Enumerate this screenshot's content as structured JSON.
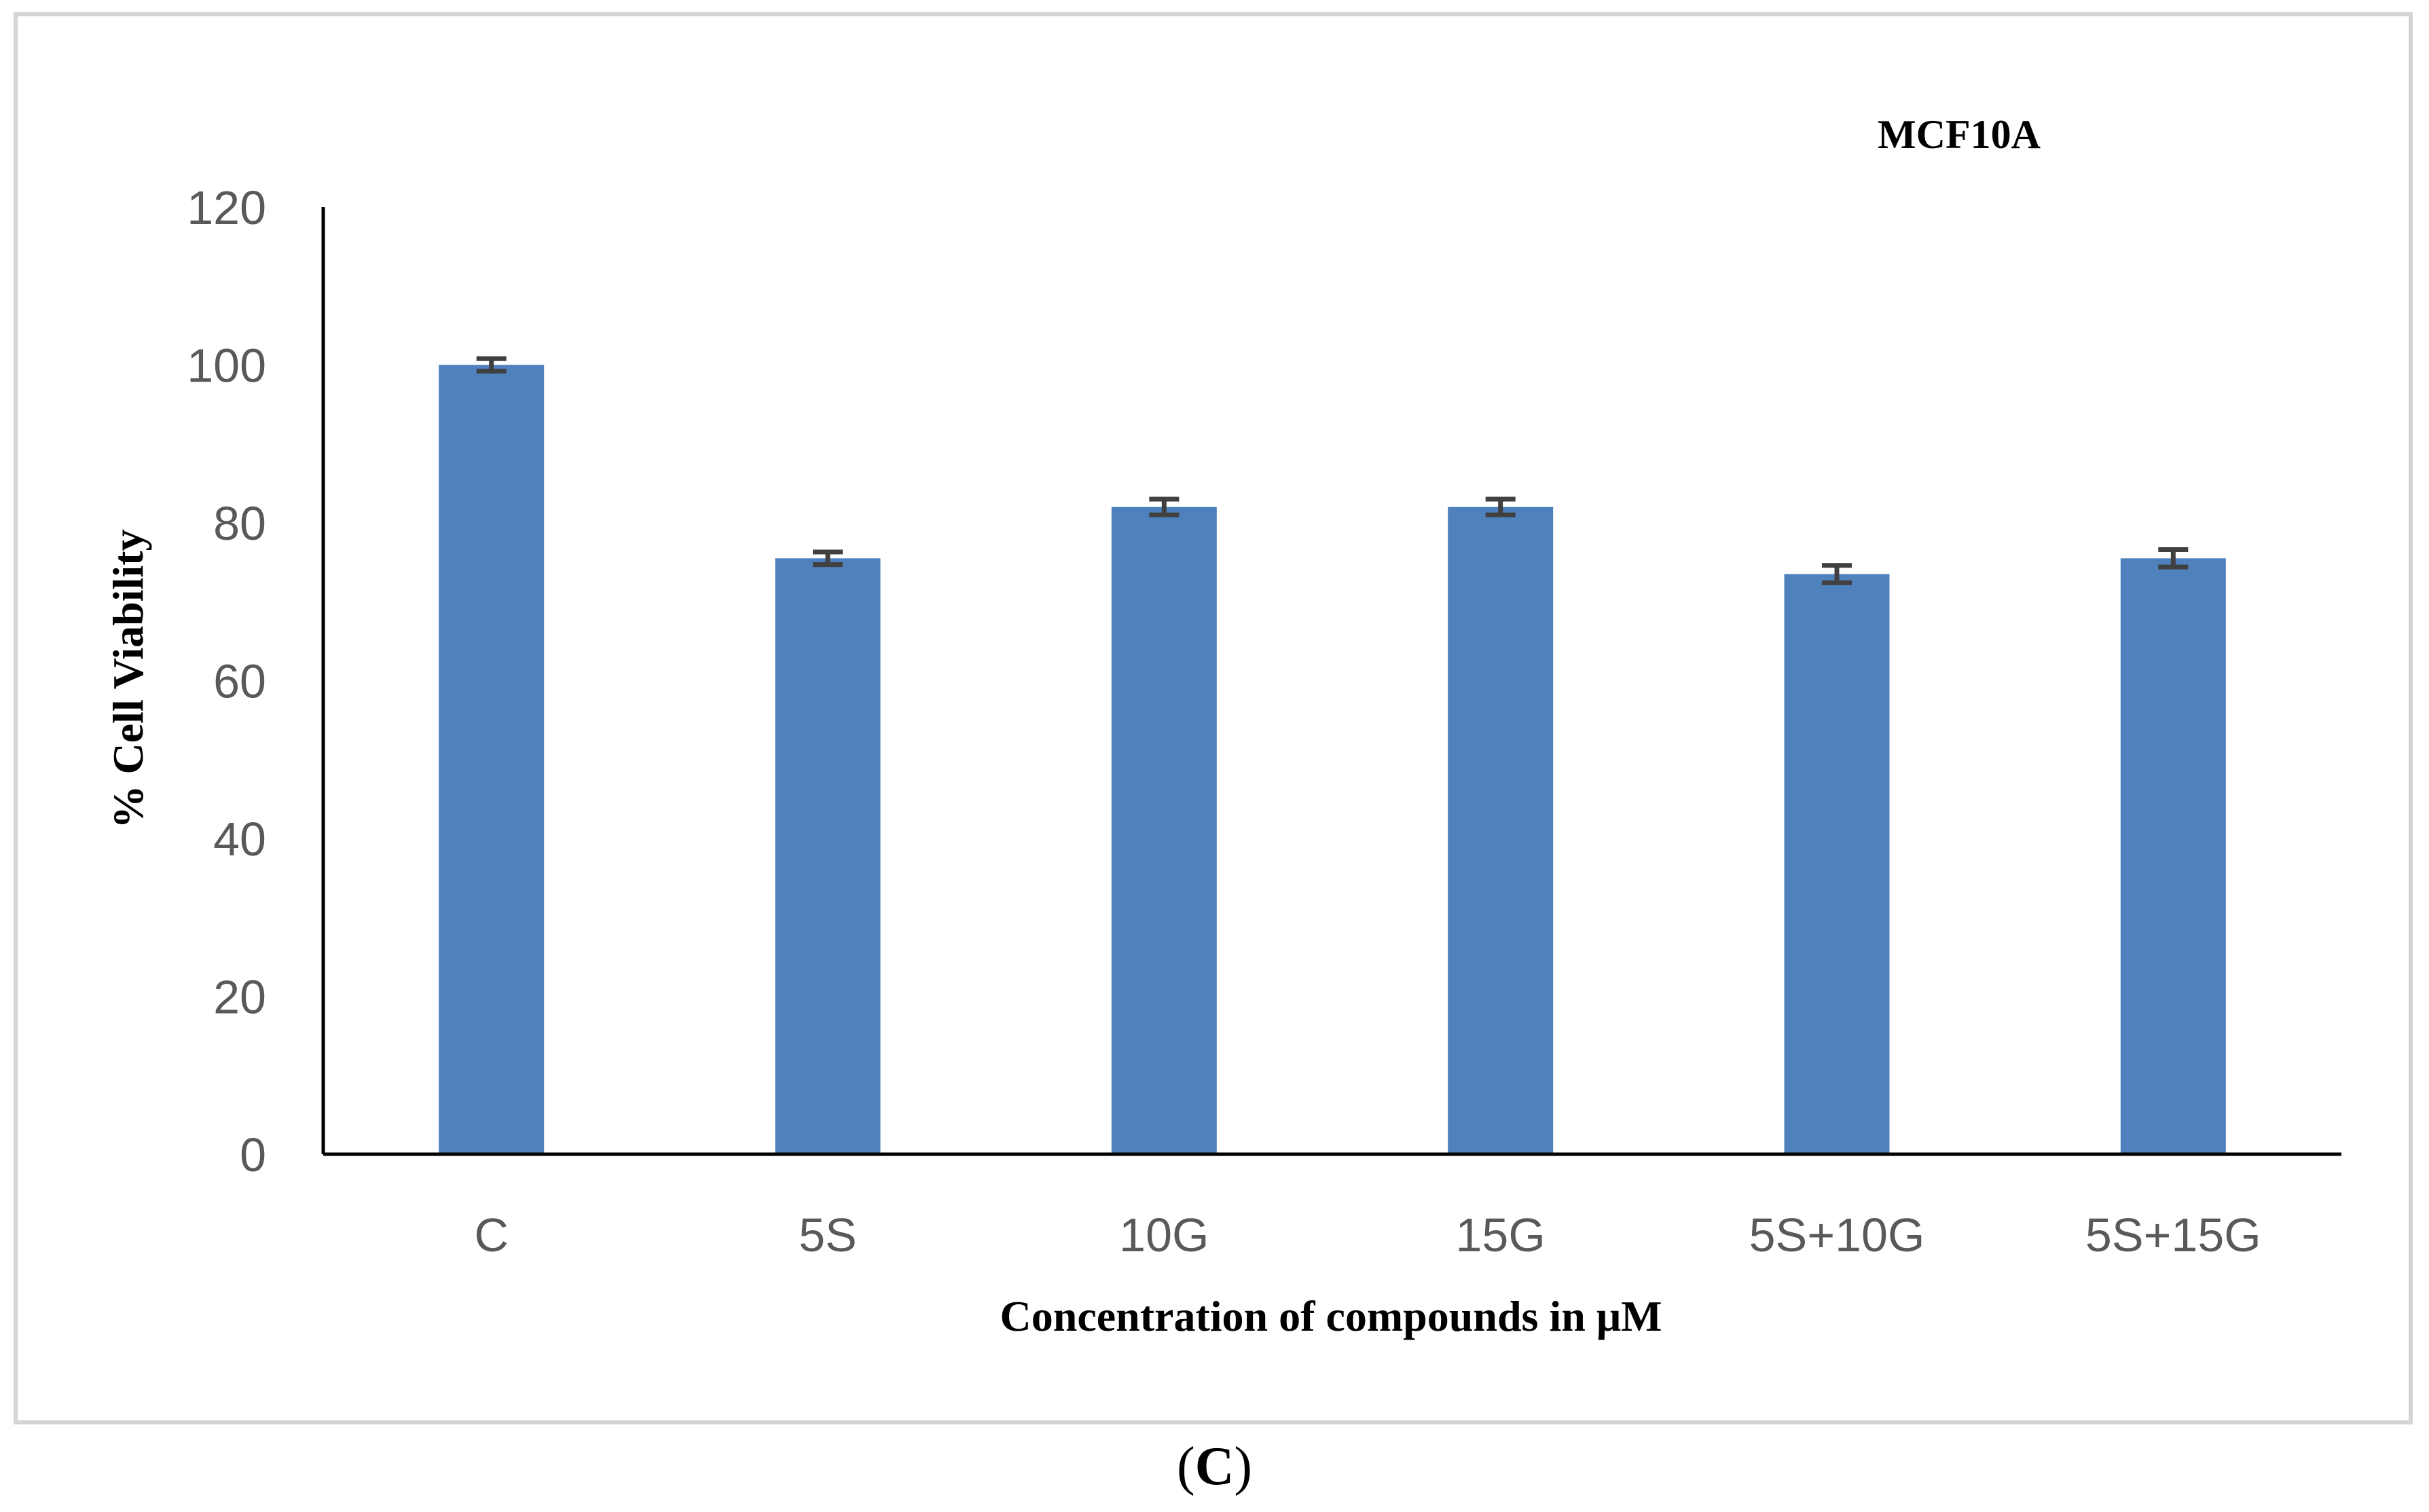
{
  "chart_data": {
    "type": "bar",
    "title": "MCF10A",
    "xlabel": "Concentration of compounds in μM",
    "ylabel": "% Cell Viability",
    "categories": [
      "C",
      "5S",
      "10G",
      "15G",
      "5S+10G",
      "5S+15G"
    ],
    "series": [
      {
        "values": [
          100,
          75.5,
          82,
          82,
          73.5,
          75.5
        ],
        "errors": [
          0.8,
          0.8,
          1.0,
          1.0,
          1.1,
          1.1
        ]
      }
    ],
    "ylim": [
      0,
      120
    ],
    "yticks": [
      "0",
      "20",
      "40",
      "60",
      "80",
      "100",
      "120"
    ],
    "grid": false,
    "bar_color": "#4f81bd",
    "error_color": "#404040"
  },
  "panel": {
    "open": "(",
    "letter": "C",
    "close": ")"
  }
}
